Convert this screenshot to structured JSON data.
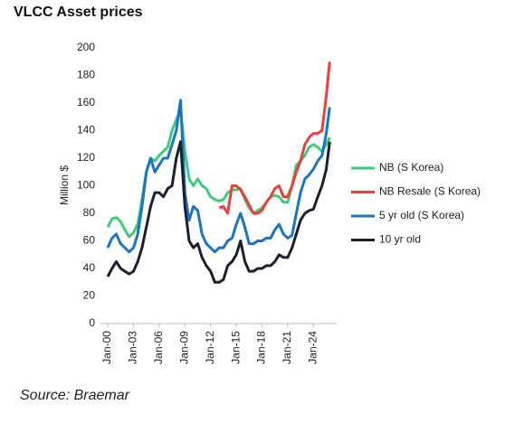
{
  "chart_data": {
    "type": "line",
    "title": "VLCC Asset prices",
    "y_label": "Million $",
    "source": "Source: Braemar",
    "x": [
      2000,
      2000.5,
      2001,
      2001.5,
      2002,
      2002.5,
      2003,
      2003.5,
      2004,
      2004.5,
      2005,
      2005.5,
      2006,
      2006.5,
      2007,
      2007.5,
      2008,
      2008.5,
      2009,
      2009.5,
      2010,
      2010.5,
      2011,
      2011.5,
      2012,
      2012.5,
      2013,
      2013.5,
      2014,
      2014.5,
      2015,
      2015.5,
      2016,
      2016.5,
      2017,
      2017.5,
      2018,
      2018.5,
      2019,
      2019.5,
      2020,
      2020.5,
      2021,
      2021.5,
      2022,
      2022.5,
      2023,
      2023.5,
      2024,
      2024.5,
      2025,
      2025.5,
      2025.9
    ],
    "series": [
      {
        "name": "NB (S Korea)",
        "color": "#3dcc7a",
        "values": [
          70,
          76,
          77,
          74,
          68,
          63,
          66,
          72,
          90,
          110,
          120,
          118,
          122,
          125,
          128,
          140,
          148,
          155,
          125,
          105,
          100,
          105,
          100,
          98,
          92,
          90,
          89,
          90,
          95,
          97,
          97,
          98,
          90,
          84,
          80,
          82,
          84,
          88,
          92,
          93,
          92,
          88,
          88,
          100,
          115,
          118,
          122,
          128,
          130,
          128,
          125,
          130,
          135
        ]
      },
      {
        "name": "NB Resale (S Korea)",
        "color": "#e8413a",
        "values": [
          null,
          null,
          null,
          null,
          null,
          null,
          null,
          null,
          null,
          null,
          null,
          null,
          null,
          null,
          null,
          null,
          null,
          null,
          null,
          null,
          null,
          null,
          null,
          null,
          null,
          null,
          84,
          85,
          80,
          100,
          100,
          97,
          92,
          86,
          80,
          80,
          82,
          88,
          92,
          98,
          100,
          92,
          92,
          100,
          110,
          118,
          130,
          135,
          138,
          138,
          140,
          165,
          190
        ]
      },
      {
        "name": "5 yr old (S Korea)",
        "color": "#1a74c4",
        "values": [
          55,
          62,
          65,
          58,
          55,
          52,
          55,
          65,
          85,
          110,
          120,
          110,
          115,
          120,
          120,
          130,
          140,
          162,
          95,
          75,
          85,
          82,
          65,
          58,
          55,
          52,
          55,
          55,
          60,
          62,
          72,
          80,
          70,
          58,
          58,
          60,
          60,
          62,
          62,
          68,
          72,
          65,
          62,
          64,
          80,
          95,
          105,
          108,
          112,
          118,
          122,
          138,
          157
        ]
      },
      {
        "name": "10 yr old",
        "color": "#1b2030",
        "values": [
          34,
          40,
          45,
          40,
          38,
          36,
          38,
          45,
          55,
          70,
          85,
          95,
          95,
          92,
          98,
          100,
          120,
          132,
          85,
          60,
          55,
          58,
          48,
          42,
          38,
          30,
          30,
          32,
          42,
          45,
          50,
          60,
          45,
          38,
          38,
          40,
          40,
          42,
          42,
          45,
          50,
          48,
          48,
          55,
          65,
          75,
          80,
          82,
          83,
          92,
          100,
          112,
          132
        ]
      }
    ],
    "xlim": [
      1999.15,
      2026.5
    ],
    "xticks": [
      {
        "value": 2000,
        "label": "Jan-00"
      },
      {
        "value": 2003,
        "label": "Jan-03"
      },
      {
        "value": 2006,
        "label": "Jan-06"
      },
      {
        "value": 2009,
        "label": "Jan-09"
      },
      {
        "value": 2012,
        "label": "Jan-12"
      },
      {
        "value": 2015,
        "label": "Jan-15"
      },
      {
        "value": 2018,
        "label": "Jan-18"
      },
      {
        "value": 2021,
        "label": "Jan-21"
      },
      {
        "value": 2024,
        "label": "Jan-24"
      }
    ],
    "ylim": [
      0,
      200
    ],
    "yticks": [
      0,
      20,
      40,
      60,
      80,
      100,
      120,
      140,
      160,
      180,
      200
    ],
    "grid": false,
    "legend": "right"
  }
}
